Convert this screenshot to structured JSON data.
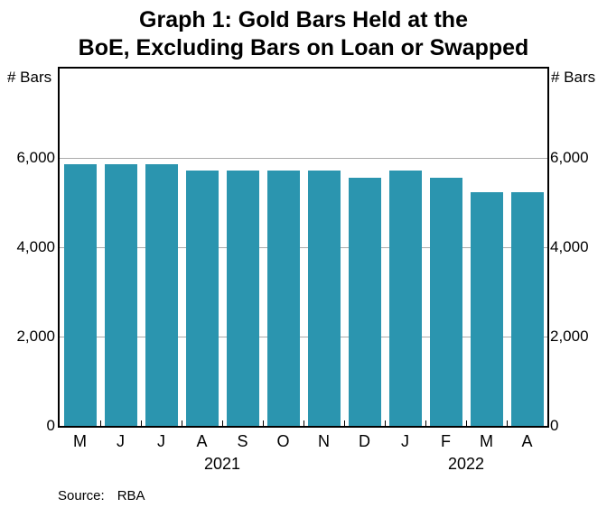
{
  "title": {
    "line1": "Graph 1: Gold Bars Held at the",
    "line2": "BoE, Excluding Bars on Loan or Swapped"
  },
  "y_axis": {
    "unit_left": "# Bars",
    "unit_right": "# Bars"
  },
  "source": {
    "label": "Source:",
    "value": "RBA"
  },
  "chart_data": {
    "type": "bar",
    "title": "Graph 1: Gold Bars Held at the BoE, Excluding Bars on Loan or Swapped",
    "ylabel": "# Bars",
    "categories": [
      "M",
      "J",
      "J",
      "A",
      "S",
      "O",
      "N",
      "D",
      "J",
      "F",
      "M",
      "A"
    ],
    "values": [
      5860,
      5860,
      5860,
      5710,
      5710,
      5710,
      5710,
      5560,
      5710,
      5560,
      5230,
      5230
    ],
    "year_groups": [
      {
        "label": "2021",
        "start_index": 0,
        "end_index": 7
      },
      {
        "label": "2022",
        "start_index": 8,
        "end_index": 11
      }
    ],
    "ylim": [
      0,
      8000
    ],
    "yticks": [
      0,
      2000,
      4000,
      6000
    ],
    "ytick_labels": [
      "0",
      "2,000",
      "4,000",
      "6,000"
    ],
    "grid": true,
    "legend": "none",
    "bar_color": "#2b95af",
    "gridline_color": "#ababab"
  }
}
